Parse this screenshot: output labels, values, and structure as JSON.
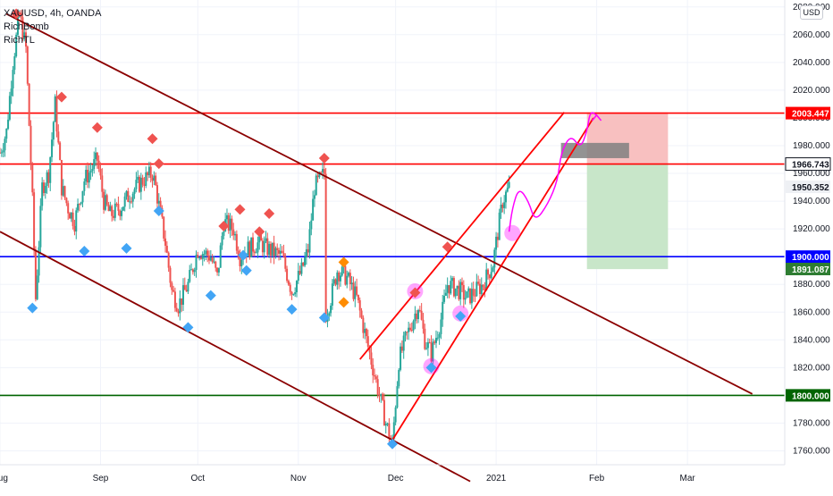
{
  "header": {
    "symbol_line": "XAUUSD, 4h, OANDA",
    "indicator_1": "RichBomb",
    "indicator_2": "RichTL",
    "currency_button": "USD"
  },
  "colors": {
    "up_candle": "#26a69a",
    "down_candle": "#ef5350",
    "channel_line": "#8b0000",
    "resistance_line": "#ff0000",
    "support_blue": "#0000ff",
    "support_green": "#006400",
    "projection_magenta": "#ff00ff",
    "marker_blue": "#42a5f5",
    "marker_red": "#ef5350",
    "marker_orange": "#ff8c00",
    "target_zone": "#f8c0c0",
    "stop_zone": "#c8e6c9"
  },
  "chart_data": {
    "type": "candlestick",
    "title": "XAUUSD, 4h, OANDA",
    "y_range": [
      1750,
      2085
    ],
    "y_ticks": [
      1760,
      1780,
      1800,
      1820,
      1840,
      1860,
      1880,
      1900,
      1920,
      1940,
      1960,
      1980,
      2000,
      2020,
      2040,
      2060,
      2080
    ],
    "y_tick_labels": [
      "1760.000",
      "1780.000",
      "1800.000",
      "1820.000",
      "1840.000",
      "1860.000",
      "1880.000",
      "1900.000",
      "1920.000",
      "1940.000",
      "1960.000",
      "1980.000",
      "2000.000",
      "2020.000",
      "2040.000",
      "2060.000",
      "2080.000"
    ],
    "x_range": [
      "2020-08-01",
      "2021-03-31"
    ],
    "x_ticks": [
      {
        "date": "2020-08-01",
        "label": "Aug"
      },
      {
        "date": "2020-09-01",
        "label": "Sep"
      },
      {
        "date": "2020-10-01",
        "label": "Oct"
      },
      {
        "date": "2020-11-01",
        "label": "Nov"
      },
      {
        "date": "2020-12-01",
        "label": "Dec"
      },
      {
        "date": "2021-01-01",
        "label": "2021"
      },
      {
        "date": "2021-02-01",
        "label": "Feb"
      },
      {
        "date": "2021-03-01",
        "label": "Mar"
      }
    ],
    "price_path": [
      [
        "2020-08-01",
        1975
      ],
      [
        "2020-08-03",
        1990
      ],
      [
        "2020-08-05",
        2040
      ],
      [
        "2020-08-07",
        2075
      ],
      [
        "2020-08-09",
        2050
      ],
      [
        "2020-08-11",
        1940
      ],
      [
        "2020-08-12",
        1870
      ],
      [
        "2020-08-14",
        1950
      ],
      [
        "2020-08-16",
        1960
      ],
      [
        "2020-08-18",
        2010
      ],
      [
        "2020-08-20",
        1950
      ],
      [
        "2020-08-22",
        1935
      ],
      [
        "2020-08-24",
        1925
      ],
      [
        "2020-08-27",
        1955
      ],
      [
        "2020-08-31",
        1970
      ],
      [
        "2020-09-02",
        1940
      ],
      [
        "2020-09-04",
        1930
      ],
      [
        "2020-09-07",
        1935
      ],
      [
        "2020-09-10",
        1945
      ],
      [
        "2020-09-14",
        1955
      ],
      [
        "2020-09-17",
        1960
      ],
      [
        "2020-09-18",
        1950
      ],
      [
        "2020-09-21",
        1910
      ],
      [
        "2020-09-23",
        1875
      ],
      [
        "2020-09-25",
        1865
      ],
      [
        "2020-09-28",
        1880
      ],
      [
        "2020-10-01",
        1905
      ],
      [
        "2020-10-05",
        1900
      ],
      [
        "2020-10-07",
        1885
      ],
      [
        "2020-10-09",
        1925
      ],
      [
        "2020-10-12",
        1920
      ],
      [
        "2020-10-14",
        1900
      ],
      [
        "2020-10-16",
        1905
      ],
      [
        "2020-10-20",
        1910
      ],
      [
        "2020-10-23",
        1905
      ],
      [
        "2020-10-27",
        1900
      ],
      [
        "2020-10-30",
        1875
      ],
      [
        "2020-11-02",
        1890
      ],
      [
        "2020-11-04",
        1905
      ],
      [
        "2020-11-06",
        1950
      ],
      [
        "2020-11-09",
        1960
      ],
      [
        "2020-11-09",
        1855
      ],
      [
        "2020-11-11",
        1870
      ],
      [
        "2020-11-13",
        1890
      ],
      [
        "2020-11-16",
        1885
      ],
      [
        "2020-11-19",
        1870
      ],
      [
        "2020-11-23",
        1830
      ],
      [
        "2020-11-25",
        1810
      ],
      [
        "2020-11-28",
        1780
      ],
      [
        "2020-11-30",
        1765
      ],
      [
        "2020-12-02",
        1825
      ],
      [
        "2020-12-04",
        1840
      ],
      [
        "2020-12-08",
        1865
      ],
      [
        "2020-12-10",
        1840
      ],
      [
        "2020-12-12",
        1830
      ],
      [
        "2020-12-15",
        1855
      ],
      [
        "2020-12-17",
        1880
      ],
      [
        "2020-12-21",
        1875
      ],
      [
        "2020-12-23",
        1870
      ],
      [
        "2020-12-28",
        1880
      ],
      [
        "2020-12-31",
        1895
      ],
      [
        "2021-01-03",
        1940
      ],
      [
        "2021-01-05",
        1950
      ]
    ],
    "horizontal_levels": [
      {
        "price": 2003.447,
        "label": "2003.447",
        "color": "#ff0000"
      },
      {
        "price": 1966.743,
        "label": "1966.743",
        "color": "#ff0000"
      },
      {
        "price": 1900.0,
        "label": "1900.000",
        "color": "#0000ff"
      },
      {
        "price": 1800.0,
        "label": "1800.000",
        "color": "#006400"
      }
    ],
    "price_tags": [
      {
        "price": 2003.447,
        "label": "2003.447",
        "bg": "#ff0000",
        "fg": "#ffffff"
      },
      {
        "price": 1966.743,
        "label": "1966.743",
        "bg": "#ffffff",
        "fg": "#131722",
        "border": "#131722"
      },
      {
        "price": 1950.352,
        "label": "1950.352",
        "bg": "#eef0f4",
        "fg": "#131722"
      },
      {
        "price": 1900.0,
        "label": "1900.000",
        "bg": "#0000ff",
        "fg": "#ffffff"
      },
      {
        "price": 1891.087,
        "label": "1891.087",
        "bg": "#2e7d32",
        "fg": "#ffffff"
      },
      {
        "price": 1800.0,
        "label": "1800.000",
        "bg": "#006400",
        "fg": "#ffffff"
      }
    ],
    "trend_lines": [
      {
        "name": "descending-channel-upper",
        "from": [
          "2020-08-03",
          2075
        ],
        "to": [
          "2021-03-21",
          1801
        ],
        "color": "#8b0000"
      },
      {
        "name": "descending-channel-lower",
        "from": [
          "2020-08-01",
          1918
        ],
        "to": [
          "2020-12-24",
          1738
        ],
        "color": "#8b0000"
      },
      {
        "name": "ascending-channel-lower",
        "from": [
          "2020-11-29",
          1764
        ],
        "to": [
          "2021-01-31",
          2000
        ],
        "color": "#ff0000"
      },
      {
        "name": "ascending-channel-upper",
        "from": [
          "2020-11-20",
          1826
        ],
        "to": [
          "2021-01-22",
          2004
        ],
        "color": "#ff0000"
      }
    ],
    "trade_zones": [
      {
        "name": "target-zone",
        "from": "2021-01-29",
        "to": "2021-02-23",
        "top": 2004,
        "bottom": 1966.7,
        "color": "#f8c0c0"
      },
      {
        "name": "stop-zone",
        "from": "2021-01-29",
        "to": "2021-02-23",
        "top": 1966.7,
        "bottom": 1891,
        "color": "#c8e6c9"
      },
      {
        "name": "entry-marker",
        "from": "2021-01-21",
        "to": "2021-02-11",
        "top": 1982,
        "bottom": 1971,
        "color": "#808080"
      }
    ],
    "projection_path": [
      [
        "2021-01-05",
        1918
      ],
      [
        "2021-01-06",
        1935
      ],
      [
        "2021-01-08",
        1950
      ],
      [
        "2021-01-11",
        1940
      ],
      [
        "2021-01-13",
        1925
      ],
      [
        "2021-01-17",
        1938
      ],
      [
        "2021-01-20",
        1955
      ],
      [
        "2021-01-21",
        1975
      ],
      [
        "2021-01-24",
        1988
      ],
      [
        "2021-01-27",
        1978
      ],
      [
        "2021-01-29",
        1990
      ],
      [
        "2021-01-30",
        2005
      ],
      [
        "2021-02-01",
        2002
      ]
    ],
    "signal_markers": [
      {
        "date": "2020-08-06",
        "price": 2075,
        "kind": "sell",
        "color": "#ef5350"
      },
      {
        "date": "2020-08-20",
        "price": 2015,
        "kind": "sell",
        "color": "#ef5350"
      },
      {
        "date": "2020-08-31",
        "price": 1993,
        "kind": "sell",
        "color": "#ef5350"
      },
      {
        "date": "2020-09-17",
        "price": 1985,
        "kind": "sell",
        "color": "#ef5350"
      },
      {
        "date": "2020-09-19",
        "price": 1967,
        "kind": "sell",
        "color": "#ef5350"
      },
      {
        "date": "2020-10-09",
        "price": 1922,
        "kind": "sell",
        "color": "#ef5350"
      },
      {
        "date": "2020-10-14",
        "price": 1934,
        "kind": "sell",
        "color": "#ef5350"
      },
      {
        "date": "2020-10-20",
        "price": 1918,
        "kind": "sell",
        "color": "#ef5350"
      },
      {
        "date": "2020-10-23",
        "price": 1931,
        "kind": "sell",
        "color": "#ef5350"
      },
      {
        "date": "2020-11-09",
        "price": 1971,
        "kind": "sell",
        "color": "#ef5350"
      },
      {
        "date": "2020-12-17",
        "price": 1907,
        "kind": "sell",
        "color": "#ef5350"
      },
      {
        "date": "2020-12-07",
        "price": 1874,
        "kind": "sell",
        "color": "#ef5350"
      },
      {
        "date": "2020-08-11",
        "price": 1863,
        "kind": "buy",
        "color": "#42a5f5"
      },
      {
        "date": "2020-08-27",
        "price": 1904,
        "kind": "buy",
        "color": "#42a5f5"
      },
      {
        "date": "2020-09-09",
        "price": 1906,
        "kind": "buy",
        "color": "#42a5f5"
      },
      {
        "date": "2020-09-19",
        "price": 1933,
        "kind": "buy",
        "color": "#42a5f5"
      },
      {
        "date": "2020-09-28",
        "price": 1849,
        "kind": "buy",
        "color": "#42a5f5"
      },
      {
        "date": "2020-10-05",
        "price": 1872,
        "kind": "buy",
        "color": "#42a5f5"
      },
      {
        "date": "2020-10-15",
        "price": 1901,
        "kind": "buy",
        "color": "#42a5f5"
      },
      {
        "date": "2020-10-16",
        "price": 1890,
        "kind": "buy",
        "color": "#42a5f5"
      },
      {
        "date": "2020-10-30",
        "price": 1862,
        "kind": "buy",
        "color": "#42a5f5"
      },
      {
        "date": "2020-11-09",
        "price": 1856,
        "kind": "buy",
        "color": "#42a5f5"
      },
      {
        "date": "2020-11-30",
        "price": 1765,
        "kind": "buy",
        "color": "#42a5f5"
      },
      {
        "date": "2020-12-12",
        "price": 1820,
        "kind": "buy",
        "color": "#42a5f5"
      },
      {
        "date": "2020-12-21",
        "price": 1857,
        "kind": "buy",
        "color": "#42a5f5"
      },
      {
        "date": "2020-11-15",
        "price": 1896,
        "kind": "sell",
        "color": "#ff8c00"
      },
      {
        "date": "2020-11-15",
        "price": 1867,
        "kind": "buy",
        "color": "#ff8c00"
      }
    ],
    "highlight_circles": [
      {
        "date": "2020-12-07",
        "price": 1875
      },
      {
        "date": "2020-12-12",
        "price": 1821
      },
      {
        "date": "2020-12-21",
        "price": 1859
      },
      {
        "date": "2021-01-06",
        "price": 1917
      }
    ],
    "current_price": 1950.352,
    "grid": true,
    "legend": "none"
  }
}
